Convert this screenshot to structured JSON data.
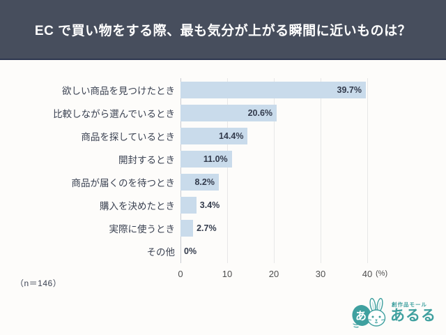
{
  "header": {
    "title": "EC で買い物をする際、最も気分が上がる瞬間に近いものは？",
    "bg_color": "#474e5d",
    "border_color": "#2d3650"
  },
  "chart_data": {
    "type": "bar",
    "orientation": "horizontal",
    "title": "EC で買い物をする際、最も気分が上がる瞬間に近いものは？",
    "categories": [
      "欲しい商品を見つけたとき",
      "比較しながら選んでいるとき",
      "商品を探しているとき",
      "開封するとき",
      "商品が届くのを待つとき",
      "購入を決めたとき",
      "実際に使うとき",
      "その他"
    ],
    "values": [
      39.7,
      20.6,
      14.4,
      11.0,
      8.2,
      3.4,
      2.7,
      0
    ],
    "value_labels": [
      "39.7%",
      "20.6%",
      "14.4%",
      "11.0%",
      "8.2%",
      "3.4%",
      "2.7%",
      "0%"
    ],
    "xlim": [
      0,
      40
    ],
    "x_ticks": [
      "0",
      "10",
      "20",
      "30",
      "40"
    ],
    "x_unit": "(%)",
    "xlabel": "",
    "ylabel": "",
    "grid": true,
    "legend": false,
    "bar_color": "#c9dbeb",
    "label_color": "#3b4252",
    "value_color": "#333b4c"
  },
  "footnote": "（n＝146）",
  "logo": {
    "tagline": "創作品モール",
    "brand": "あるる",
    "mark_char": "あ",
    "color": "#3fa09f"
  }
}
